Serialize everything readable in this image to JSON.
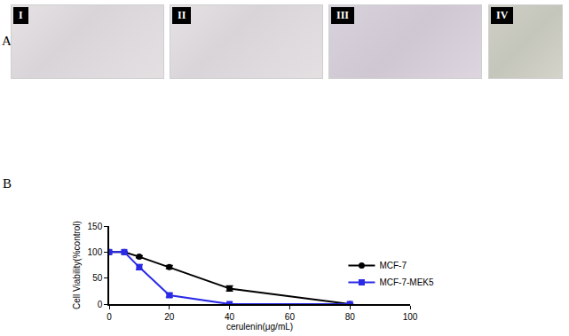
{
  "panel_a": {
    "label": "A",
    "images": [
      "I",
      "II",
      "III",
      "IV"
    ]
  },
  "chart_data": {
    "type": "line",
    "annotations": [
      "B"
    ],
    "x_label": "cerulenin(μg/mL)",
    "y_label": "Cell Viability(%control)",
    "x": [
      0,
      5,
      10,
      20,
      40,
      80
    ],
    "series": [
      {
        "name": "MCF-7",
        "color": "#000000",
        "marker": "circle",
        "values": [
          100,
          100,
          91,
          71,
          30,
          0
        ],
        "errors": [
          0,
          0,
          2,
          3,
          5,
          0
        ]
      },
      {
        "name": "MCF-7-MEK5",
        "color": "#2a2ae6",
        "marker": "square",
        "values": [
          100,
          100,
          71,
          17,
          0,
          0
        ],
        "errors": [
          0,
          0,
          5,
          4,
          0,
          0
        ]
      }
    ],
    "xlim": [
      0,
      100
    ],
    "xticks": [
      0,
      20,
      40,
      60,
      80,
      100
    ],
    "ylim": [
      0,
      150
    ],
    "yticks": [
      0,
      50,
      100,
      150
    ],
    "grid": false,
    "legend": "upper right"
  }
}
